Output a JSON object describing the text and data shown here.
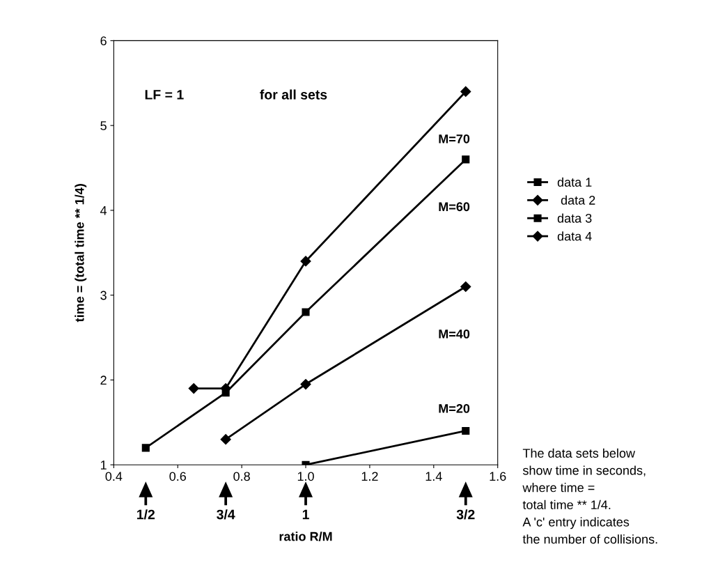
{
  "chart_data": {
    "type": "line",
    "xlabel": "ratio R/M",
    "ylabel": "time = (total time ** 1/4)",
    "xlim": [
      0.4,
      1.6
    ],
    "ylim": [
      1,
      6
    ],
    "xticks": [
      0.4,
      0.6,
      0.8,
      {
        "value": 1.0,
        "label": "1.0"
      },
      1.2,
      1.4,
      1.6
    ],
    "yticks": [
      1,
      2,
      3,
      4,
      5,
      6
    ],
    "grid": false,
    "legend": "right",
    "line_style": "solid",
    "series": [
      {
        "name": "data 1",
        "color": "#000000",
        "marker": "square",
        "x": [
          1.0,
          1.5
        ],
        "values": [
          1.0,
          1.4
        ]
      },
      {
        "name": " data 2",
        "color": "#000000",
        "marker": "diamond",
        "x": [
          0.65,
          0.75,
          1.0,
          1.5
        ],
        "values": [
          1.9,
          1.9,
          3.4,
          5.4
        ]
      },
      {
        "name": "data 3",
        "color": "#000000",
        "marker": "square",
        "x": [
          0.5,
          0.75,
          1.0,
          1.5
        ],
        "values": [
          1.2,
          1.85,
          2.8,
          4.6
        ]
      },
      {
        "name": "data 4",
        "color": "#000000",
        "marker": "diamond",
        "x": [
          0.75,
          1.0,
          1.5
        ],
        "values": [
          1.3,
          1.95,
          3.1
        ]
      }
    ],
    "annotations": [
      "LF = 1",
      "for all sets",
      "M=70",
      "M=60",
      "M=40",
      "M=20",
      "1/2",
      "3/4",
      "1",
      "3/2",
      "The data sets below\nshow time in seconds,\nwhere time =\ntotal time ** 1/4.\nA 'c' entry indicates\nthe number of collisions."
    ]
  }
}
